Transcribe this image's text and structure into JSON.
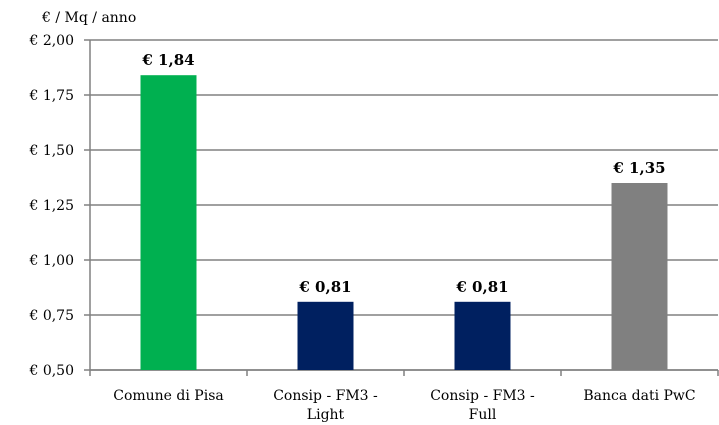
{
  "chart_data": {
    "type": "bar",
    "ylabel": "€ / Mq / anno",
    "categories": [
      "Comune di Pisa",
      "Consip - FM3 - Light",
      "Consip - FM3 - Full",
      "Banca dati PwC"
    ],
    "values": [
      1.84,
      0.81,
      0.81,
      1.35
    ],
    "value_labels": [
      "€ 1,84",
      "€ 0,81",
      "€ 0,81",
      "€ 1,35"
    ],
    "bar_colors": [
      "#00b050",
      "#002060",
      "#002060",
      "#808080"
    ],
    "ylim": [
      0.5,
      2.0
    ],
    "yticks": [
      0.5,
      0.75,
      1.0,
      1.25,
      1.5,
      1.75,
      2.0
    ],
    "ytick_labels": [
      "€ 0,50",
      "€ 0,75",
      "€ 1,00",
      "€ 1,25",
      "€ 1,50",
      "€ 1,75",
      "€ 2,00"
    ],
    "grid": true,
    "legend": false
  }
}
